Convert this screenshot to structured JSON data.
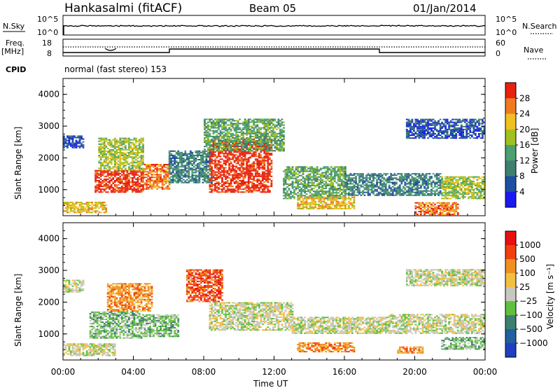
{
  "header": {
    "station": "Hankasalmi (fitACF)",
    "beam": "Beam 05",
    "date": "01/Jan/2014"
  },
  "noise_panel": {
    "left_label": "N.Sky",
    "right_label": "N.Search",
    "left_ticks": [
      "10^5",
      "10^0"
    ],
    "right_ticks": [
      "10^5",
      "10^0"
    ]
  },
  "freq_panel": {
    "left_label_1": "Freq.",
    "left_label_2": "[MHz]",
    "right_label": "Nave",
    "left_ticks": [
      "18",
      "8"
    ],
    "right_ticks": [
      "60",
      "0"
    ],
    "cpid_label": "CPID",
    "cpid_text": "normal (fast stereo) 153"
  },
  "chart_data": [
    {
      "type": "heatmap",
      "name": "power",
      "ylabel": "Slant Range [km]",
      "y_ticks": [
        "4000",
        "3000",
        "2000",
        "1000"
      ],
      "ylim": [
        180,
        4500
      ],
      "colorbar_label": "Power [dB]",
      "colorbar_ticks": [
        "28",
        "24",
        "20",
        "16",
        "12",
        "8",
        "4"
      ],
      "colorbar_colors": [
        "#1a1af0",
        "#1f4fa0",
        "#3f7f6f",
        "#4aa070",
        "#a0c020",
        "#f0c020",
        "#f07a20",
        "#e82010"
      ],
      "bands": [
        {
          "t0": 0.0,
          "t1": 2.5,
          "r0": 260,
          "r1": 620,
          "level": 5
        },
        {
          "t0": 0.0,
          "t1": 1.2,
          "r0": 2300,
          "r1": 2700,
          "level": 1
        },
        {
          "t0": 1.8,
          "t1": 4.6,
          "r0": 900,
          "r1": 1600,
          "level": 7
        },
        {
          "t0": 2.0,
          "t1": 4.6,
          "r0": 1600,
          "r1": 2600,
          "level": 4
        },
        {
          "t0": 4.6,
          "t1": 6.0,
          "r0": 1000,
          "r1": 1800,
          "level": 6
        },
        {
          "t0": 6.0,
          "t1": 8.4,
          "r0": 1200,
          "r1": 2200,
          "level": 2
        },
        {
          "t0": 8.3,
          "t1": 11.8,
          "r0": 900,
          "r1": 2600,
          "level": 7
        },
        {
          "t0": 8.0,
          "t1": 12.5,
          "r0": 2200,
          "r1": 3200,
          "level": 3
        },
        {
          "t0": 12.5,
          "t1": 16.0,
          "r0": 700,
          "r1": 1700,
          "level": 3
        },
        {
          "t0": 13.3,
          "t1": 16.5,
          "r0": 380,
          "r1": 780,
          "level": 5
        },
        {
          "t0": 16.0,
          "t1": 21.5,
          "r0": 800,
          "r1": 1500,
          "level": 2
        },
        {
          "t0": 21.5,
          "t1": 24.0,
          "r0": 700,
          "r1": 1400,
          "level": 4
        },
        {
          "t0": 19.5,
          "t1": 24.0,
          "r0": 2600,
          "r1": 3200,
          "level": 1
        },
        {
          "t0": 20.0,
          "t1": 22.5,
          "r0": 200,
          "r1": 600,
          "level": 6
        }
      ]
    },
    {
      "type": "heatmap",
      "name": "velocity",
      "ylabel": "Slant Range [km]",
      "y_ticks": [
        "4000",
        "3000",
        "2000",
        "1000"
      ],
      "ylim": [
        180,
        4500
      ],
      "colorbar_label": "Velocity [m s⁻¹]",
      "colorbar_ticks": [
        "1000",
        "500",
        "100",
        "25",
        "−25",
        "−100",
        "−500",
        "−1000"
      ],
      "colorbar_colors": [
        "#1f40c0",
        "#2060a0",
        "#3f7f6f",
        "#60c040",
        "#c8c8c0",
        "#f0c040",
        "#f09020",
        "#f04010",
        "#e81010"
      ],
      "bands": [
        {
          "t0": 0.0,
          "t1": 1.2,
          "r0": 2300,
          "r1": 2700,
          "level": 4
        },
        {
          "t0": 0.0,
          "t1": 3.0,
          "r0": 300,
          "r1": 700,
          "level": 4
        },
        {
          "t0": 1.5,
          "t1": 4.5,
          "r0": 850,
          "r1": 1700,
          "level": 3
        },
        {
          "t0": 2.5,
          "t1": 5.0,
          "r0": 1700,
          "r1": 2600,
          "level": 6
        },
        {
          "t0": 4.5,
          "t1": 6.5,
          "r0": 900,
          "r1": 1600,
          "level": 3
        },
        {
          "t0": 7.0,
          "t1": 9.0,
          "r0": 2000,
          "r1": 3000,
          "level": 7
        },
        {
          "t0": 8.3,
          "t1": 13.0,
          "r0": 1100,
          "r1": 2000,
          "level": 4
        },
        {
          "t0": 13.3,
          "t1": 16.5,
          "r0": 420,
          "r1": 700,
          "level": 6
        },
        {
          "t0": 13.0,
          "t1": 18.5,
          "r0": 1000,
          "r1": 1500,
          "level": 4
        },
        {
          "t0": 18.5,
          "t1": 24.0,
          "r0": 1000,
          "r1": 1600,
          "level": 4
        },
        {
          "t0": 19.5,
          "t1": 24.0,
          "r0": 2500,
          "r1": 3000,
          "level": 4
        },
        {
          "t0": 19.0,
          "t1": 20.5,
          "r0": 380,
          "r1": 600,
          "level": 6
        },
        {
          "t0": 21.5,
          "t1": 24.0,
          "r0": 500,
          "r1": 900,
          "level": 3
        }
      ]
    }
  ],
  "x_axis": {
    "ticks": [
      "00:00",
      "04:00",
      "08:00",
      "12:00",
      "16:00",
      "20:00",
      "00:00"
    ],
    "label": "Time UT",
    "range_hours": [
      0,
      24
    ]
  }
}
